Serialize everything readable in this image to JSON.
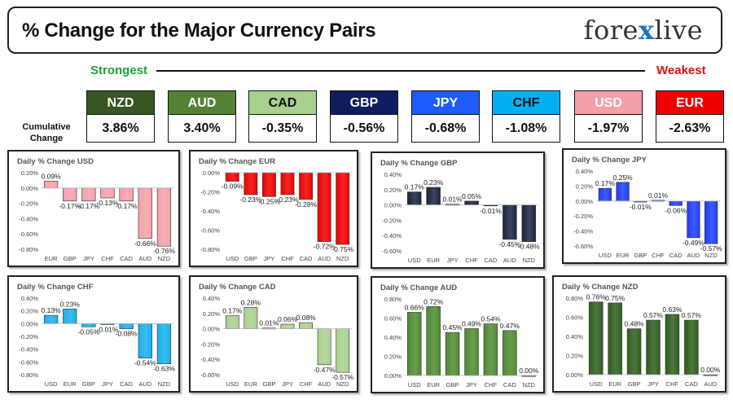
{
  "header": {
    "title": "% Change for the Major Currency Pairs",
    "logo_left": "fore",
    "logo_mid": "x",
    "logo_right": "live"
  },
  "ranking": {
    "strongest_label": "Strongest",
    "weakest_label": "Weakest",
    "cumulative_label": "Cumulative Change",
    "currencies": [
      {
        "name": "NZD",
        "value": "3.86%",
        "color": "#375623",
        "text_color": "#ffffff"
      },
      {
        "name": "AUD",
        "value": "3.40%",
        "color": "#548235",
        "text_color": "#ffffff"
      },
      {
        "name": "CAD",
        "value": "-0.35%",
        "color": "#a9d08e",
        "text_color": "#111111"
      },
      {
        "name": "GBP",
        "value": "-0.56%",
        "color": "#0e1d5e",
        "text_color": "#ffffff"
      },
      {
        "name": "JPY",
        "value": "-0.68%",
        "color": "#1f5cff",
        "text_color": "#ffffff"
      },
      {
        "name": "CHF",
        "value": "-1.08%",
        "color": "#00b0f0",
        "text_color": "#111111"
      },
      {
        "name": "USD",
        "value": "-1.97%",
        "color": "#f4a0a8",
        "text_color": "#ffffff"
      },
      {
        "name": "EUR",
        "value": "-2.63%",
        "color": "#ee0000",
        "text_color": "#ffffff"
      }
    ]
  },
  "chart_data": [
    {
      "type": "bar",
      "title": "Daily % Change USD",
      "categories": [
        "EUR",
        "GBP",
        "JPY",
        "CHF",
        "CAD",
        "AUD",
        "NZD"
      ],
      "values": [
        0.09,
        -0.17,
        -0.17,
        -0.13,
        -0.17,
        -0.66,
        -0.76
      ],
      "labels": [
        "0.09%",
        "-0.17%",
        "-0.17%",
        "-0.13%",
        "-0.17%",
        "-0.66%",
        "-0.76%"
      ],
      "ylim": [
        -0.8,
        0.2
      ],
      "ticks": [
        0.2,
        0,
        -0.2,
        -0.4,
        -0.6,
        -0.8
      ],
      "tick_labels": [
        "0.20%",
        "0.00%",
        "-0.20%",
        "-0.40%",
        "-0.60%",
        "-0.80%"
      ],
      "color": "#f4a0a8"
    },
    {
      "type": "bar",
      "title": "Daily % Change EUR",
      "categories": [
        "USD",
        "GBP",
        "JPY",
        "CHF",
        "CAD",
        "AUD",
        "NZD"
      ],
      "values": [
        -0.09,
        -0.23,
        -0.25,
        -0.23,
        -0.28,
        -0.72,
        -0.75
      ],
      "labels": [
        "-0.09%",
        "-0.23%",
        "-0.25%",
        "-0.23%",
        "-0.28%",
        "-0.72%",
        "-0.75%"
      ],
      "ylim": [
        -0.8,
        0.0
      ],
      "ticks": [
        0,
        -0.2,
        -0.4,
        -0.6,
        -0.8
      ],
      "tick_labels": [
        "0.00%",
        "-0.20%",
        "-0.40%",
        "-0.60%",
        "-0.80%"
      ],
      "color": "#ee0000"
    },
    {
      "type": "bar",
      "title": "Daily % Change GBP",
      "categories": [
        "USD",
        "EUR",
        "JPY",
        "CHF",
        "CAD",
        "AUD",
        "NZD"
      ],
      "values": [
        0.17,
        0.23,
        0.01,
        0.05,
        -0.01,
        -0.45,
        -0.48
      ],
      "labels": [
        "0.17%",
        "0.23%",
        "0.01%",
        "0.05%",
        "-0.01%",
        "-0.45%",
        "-0.48%"
      ],
      "ylim": [
        -0.6,
        0.4
      ],
      "ticks": [
        0.4,
        0.2,
        0,
        -0.2,
        -0.4,
        -0.6
      ],
      "tick_labels": [
        "0.40%",
        "0.20%",
        "0.00%",
        "-0.20%",
        "-0.40%",
        "-0.60%"
      ],
      "color": "#1b2440"
    },
    {
      "type": "bar",
      "title": "Daily % Change JPY",
      "categories": [
        "USD",
        "EUR",
        "GBP",
        "CHF",
        "CAD",
        "AUD",
        "NZD"
      ],
      "values": [
        0.17,
        0.25,
        -0.01,
        0.01,
        -0.06,
        -0.49,
        -0.57
      ],
      "labels": [
        "0.17%",
        "0.25%",
        "-0.01%",
        "0.01%",
        "-0.06%",
        "-0.49%",
        "-0.57%"
      ],
      "ylim": [
        -0.6,
        0.4
      ],
      "ticks": [
        0.4,
        0.3,
        0.2,
        0.1,
        0,
        -0.1,
        -0.2,
        -0.3,
        -0.4,
        -0.5,
        -0.6
      ],
      "tick_labels": [
        "0.40%",
        "",
        "0.20%",
        "",
        "0.00%",
        "",
        "-0.20%",
        "",
        "-0.40%",
        "",
        "-0.60%"
      ],
      "color": "#1f3cff"
    },
    {
      "type": "bar",
      "title": "Daily % Change CHF",
      "categories": [
        "USD",
        "EUR",
        "GBP",
        "JPY",
        "CAD",
        "AUD",
        "NZD"
      ],
      "values": [
        0.13,
        0.23,
        -0.05,
        -0.01,
        -0.08,
        -0.54,
        -0.63
      ],
      "labels": [
        "0.13%",
        "0.23%",
        "-0.05%",
        "-0.01%",
        "-0.08%",
        "-0.54%",
        "-0.63%"
      ],
      "ylim": [
        -0.8,
        0.4
      ],
      "ticks": [
        0.4,
        0.2,
        0,
        -0.2,
        -0.4,
        -0.6,
        -0.8
      ],
      "tick_labels": [
        "0.40%",
        "0.20%",
        "0.00%",
        "-0.20%",
        "-0.40%",
        "-0.60%",
        "-0.80%"
      ],
      "color": "#19b0ee"
    },
    {
      "type": "bar",
      "title": "Daily % Change CAD",
      "categories": [
        "USD",
        "EUR",
        "GBP",
        "JPY",
        "CHF",
        "AUD",
        "NZD"
      ],
      "values": [
        0.17,
        0.28,
        0.01,
        0.06,
        0.08,
        -0.47,
        -0.57
      ],
      "labels": [
        "0.17%",
        "0.28%",
        "0.01%",
        "0.06%",
        "0.08%",
        "-0.47%",
        "-0.57%"
      ],
      "ylim": [
        -0.6,
        0.4
      ],
      "ticks": [
        0.4,
        0.2,
        0,
        -0.2,
        -0.4,
        -0.6
      ],
      "tick_labels": [
        "0.40%",
        "0.20%",
        "0.00%",
        "-0.20%",
        "-0.40%",
        "-0.60%"
      ],
      "color": "#a9d08e"
    },
    {
      "type": "bar",
      "title": "Daily % Change AUD",
      "categories": [
        "USD",
        "EUR",
        "GBP",
        "JPY",
        "CHF",
        "CAD",
        "NZD"
      ],
      "values": [
        0.66,
        0.72,
        0.45,
        0.49,
        0.54,
        0.47,
        0.0
      ],
      "labels": [
        "0.66%",
        "0.72%",
        "0.45%",
        "0.49%",
        "0.54%",
        "0.47%",
        "0.00%"
      ],
      "ylim": [
        0,
        0.8
      ],
      "ticks": [
        0.8,
        0.6,
        0.4,
        0.2,
        0
      ],
      "tick_labels": [
        "0.80%",
        "0.60%",
        "0.40%",
        "0.20%",
        "0.00%"
      ],
      "color": "#4f8a32"
    },
    {
      "type": "bar",
      "title": "Daily % Change NZD",
      "categories": [
        "USD",
        "EUR",
        "GBP",
        "JPY",
        "CHF",
        "CAD",
        "AUD"
      ],
      "values": [
        0.76,
        0.75,
        0.48,
        0.57,
        0.63,
        0.57,
        0.0
      ],
      "labels": [
        "0.76%",
        "0.75%",
        "0.48%",
        "0.57%",
        "0.63%",
        "0.57%",
        "0.00%"
      ],
      "ylim": [
        0,
        0.8
      ],
      "ticks": [
        0.8,
        0.6,
        0.4,
        0.2,
        0
      ],
      "tick_labels": [
        "0.80%",
        "0.60%",
        "0.40%",
        "0.20%",
        "0.00%"
      ],
      "color": "#2f5d1e"
    }
  ]
}
